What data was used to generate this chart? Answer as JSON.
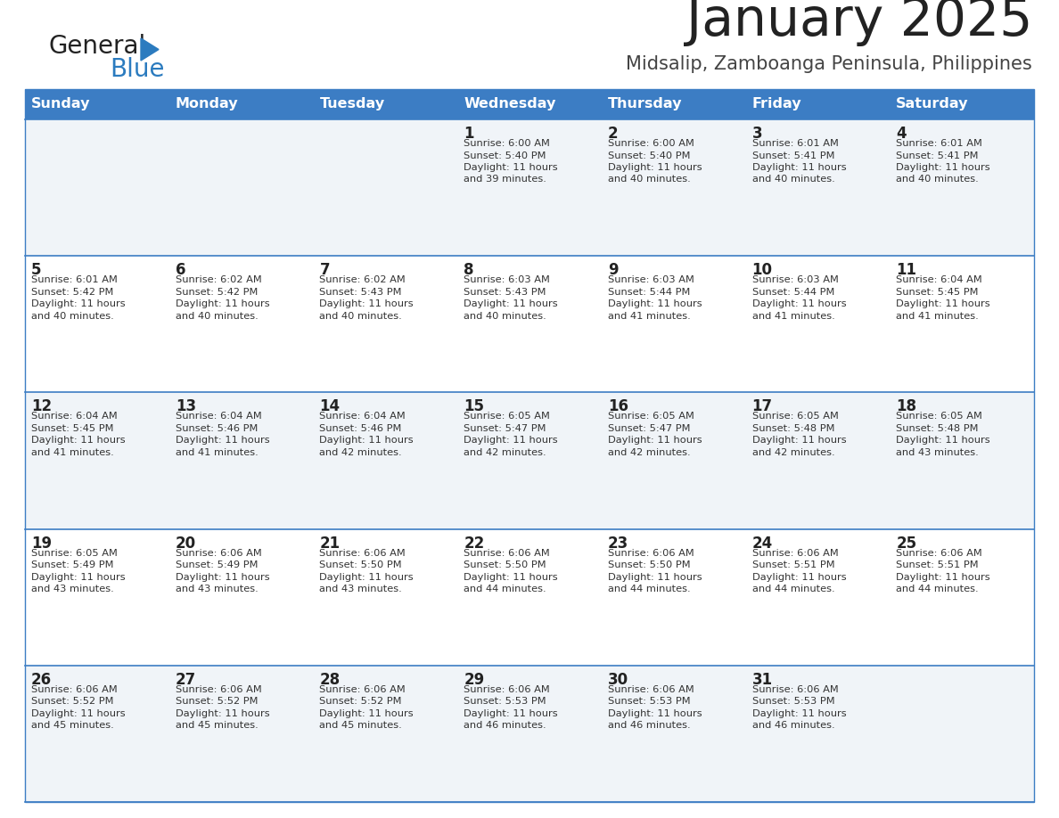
{
  "title": "January 2025",
  "subtitle": "Midsalip, Zamboanga Peninsula, Philippines",
  "header_bg_color": "#3c7dc4",
  "header_text_color": "#ffffff",
  "day_names": [
    "Sunday",
    "Monday",
    "Tuesday",
    "Wednesday",
    "Thursday",
    "Friday",
    "Saturday"
  ],
  "row_bg_even": "#f0f4f8",
  "row_bg_odd": "#ffffff",
  "cell_border_color": "#3c7dc4",
  "day_number_color": "#222222",
  "info_text_color": "#333333",
  "title_color": "#222222",
  "subtitle_color": "#444444",
  "logo_general_color": "#222222",
  "logo_blue_color": "#2b7bbf",
  "calendar_data": [
    [
      {
        "day": "",
        "info": ""
      },
      {
        "day": "",
        "info": ""
      },
      {
        "day": "",
        "info": ""
      },
      {
        "day": "1",
        "info": "Sunrise: 6:00 AM\nSunset: 5:40 PM\nDaylight: 11 hours\nand 39 minutes."
      },
      {
        "day": "2",
        "info": "Sunrise: 6:00 AM\nSunset: 5:40 PM\nDaylight: 11 hours\nand 40 minutes."
      },
      {
        "day": "3",
        "info": "Sunrise: 6:01 AM\nSunset: 5:41 PM\nDaylight: 11 hours\nand 40 minutes."
      },
      {
        "day": "4",
        "info": "Sunrise: 6:01 AM\nSunset: 5:41 PM\nDaylight: 11 hours\nand 40 minutes."
      }
    ],
    [
      {
        "day": "5",
        "info": "Sunrise: 6:01 AM\nSunset: 5:42 PM\nDaylight: 11 hours\nand 40 minutes."
      },
      {
        "day": "6",
        "info": "Sunrise: 6:02 AM\nSunset: 5:42 PM\nDaylight: 11 hours\nand 40 minutes."
      },
      {
        "day": "7",
        "info": "Sunrise: 6:02 AM\nSunset: 5:43 PM\nDaylight: 11 hours\nand 40 minutes."
      },
      {
        "day": "8",
        "info": "Sunrise: 6:03 AM\nSunset: 5:43 PM\nDaylight: 11 hours\nand 40 minutes."
      },
      {
        "day": "9",
        "info": "Sunrise: 6:03 AM\nSunset: 5:44 PM\nDaylight: 11 hours\nand 41 minutes."
      },
      {
        "day": "10",
        "info": "Sunrise: 6:03 AM\nSunset: 5:44 PM\nDaylight: 11 hours\nand 41 minutes."
      },
      {
        "day": "11",
        "info": "Sunrise: 6:04 AM\nSunset: 5:45 PM\nDaylight: 11 hours\nand 41 minutes."
      }
    ],
    [
      {
        "day": "12",
        "info": "Sunrise: 6:04 AM\nSunset: 5:45 PM\nDaylight: 11 hours\nand 41 minutes."
      },
      {
        "day": "13",
        "info": "Sunrise: 6:04 AM\nSunset: 5:46 PM\nDaylight: 11 hours\nand 41 minutes."
      },
      {
        "day": "14",
        "info": "Sunrise: 6:04 AM\nSunset: 5:46 PM\nDaylight: 11 hours\nand 42 minutes."
      },
      {
        "day": "15",
        "info": "Sunrise: 6:05 AM\nSunset: 5:47 PM\nDaylight: 11 hours\nand 42 minutes."
      },
      {
        "day": "16",
        "info": "Sunrise: 6:05 AM\nSunset: 5:47 PM\nDaylight: 11 hours\nand 42 minutes."
      },
      {
        "day": "17",
        "info": "Sunrise: 6:05 AM\nSunset: 5:48 PM\nDaylight: 11 hours\nand 42 minutes."
      },
      {
        "day": "18",
        "info": "Sunrise: 6:05 AM\nSunset: 5:48 PM\nDaylight: 11 hours\nand 43 minutes."
      }
    ],
    [
      {
        "day": "19",
        "info": "Sunrise: 6:05 AM\nSunset: 5:49 PM\nDaylight: 11 hours\nand 43 minutes."
      },
      {
        "day": "20",
        "info": "Sunrise: 6:06 AM\nSunset: 5:49 PM\nDaylight: 11 hours\nand 43 minutes."
      },
      {
        "day": "21",
        "info": "Sunrise: 6:06 AM\nSunset: 5:50 PM\nDaylight: 11 hours\nand 43 minutes."
      },
      {
        "day": "22",
        "info": "Sunrise: 6:06 AM\nSunset: 5:50 PM\nDaylight: 11 hours\nand 44 minutes."
      },
      {
        "day": "23",
        "info": "Sunrise: 6:06 AM\nSunset: 5:50 PM\nDaylight: 11 hours\nand 44 minutes."
      },
      {
        "day": "24",
        "info": "Sunrise: 6:06 AM\nSunset: 5:51 PM\nDaylight: 11 hours\nand 44 minutes."
      },
      {
        "day": "25",
        "info": "Sunrise: 6:06 AM\nSunset: 5:51 PM\nDaylight: 11 hours\nand 44 minutes."
      }
    ],
    [
      {
        "day": "26",
        "info": "Sunrise: 6:06 AM\nSunset: 5:52 PM\nDaylight: 11 hours\nand 45 minutes."
      },
      {
        "day": "27",
        "info": "Sunrise: 6:06 AM\nSunset: 5:52 PM\nDaylight: 11 hours\nand 45 minutes."
      },
      {
        "day": "28",
        "info": "Sunrise: 6:06 AM\nSunset: 5:52 PM\nDaylight: 11 hours\nand 45 minutes."
      },
      {
        "day": "29",
        "info": "Sunrise: 6:06 AM\nSunset: 5:53 PM\nDaylight: 11 hours\nand 46 minutes."
      },
      {
        "day": "30",
        "info": "Sunrise: 6:06 AM\nSunset: 5:53 PM\nDaylight: 11 hours\nand 46 minutes."
      },
      {
        "day": "31",
        "info": "Sunrise: 6:06 AM\nSunset: 5:53 PM\nDaylight: 11 hours\nand 46 minutes."
      },
      {
        "day": "",
        "info": ""
      }
    ]
  ]
}
